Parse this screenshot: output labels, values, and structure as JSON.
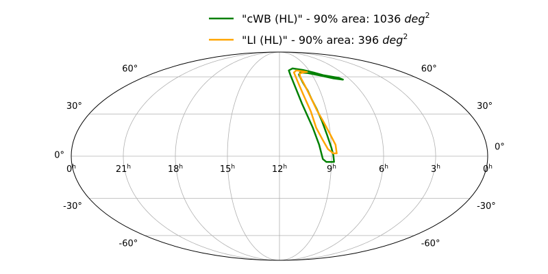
{
  "chart_data": {
    "type": "line",
    "projection": "mollweide",
    "title": "",
    "grid": true,
    "legend_placement": "top",
    "x_tick_labels": [
      {
        "ra_hours": 24,
        "base": "0",
        "sup": "h"
      },
      {
        "ra_hours": 21,
        "base": "21",
        "sup": "h"
      },
      {
        "ra_hours": 18,
        "base": "18",
        "sup": "h"
      },
      {
        "ra_hours": 15,
        "base": "15",
        "sup": "h"
      },
      {
        "ra_hours": 12,
        "base": "12",
        "sup": "h"
      },
      {
        "ra_hours": 9,
        "base": "9",
        "sup": "h"
      },
      {
        "ra_hours": 6,
        "base": "6",
        "sup": "h"
      },
      {
        "ra_hours": 3,
        "base": "3",
        "sup": "h"
      },
      {
        "ra_hours": 0,
        "base": "0",
        "sup": "h"
      }
    ],
    "y_tick_labels": [
      {
        "dec": 60,
        "label": "60°"
      },
      {
        "dec": 30,
        "label": "30°"
      },
      {
        "dec": 0,
        "label": "0°"
      },
      {
        "dec": -30,
        "label": "-30°"
      },
      {
        "dec": -60,
        "label": "-60°"
      }
    ],
    "series": [
      {
        "name": "\"cWB (HL)\" - 90% area: 1036 deg²",
        "legend_prefix": "\"cWB (HL)\" - 90% area: 1036 ",
        "legend_unit": "deg",
        "legend_sup": "2",
        "color": "#008000",
        "contours": [
          {
            "points": [
              [
                9.5,
                -2
              ],
              [
                9.7,
                8
              ],
              [
                10.0,
                20
              ],
              [
                10.5,
                38
              ],
              [
                10.8,
                52
              ],
              [
                11.0,
                62
              ],
              [
                11.05,
                66
              ],
              [
                10.6,
                68
              ],
              [
                9.6,
                66.5
              ],
              [
                8.7,
                64
              ],
              [
                8.0,
                61.5
              ],
              [
                6.8,
                59
              ],
              [
                6.6,
                57.5
              ],
              [
                7.3,
                58.5
              ],
              [
                8.4,
                61.5
              ],
              [
                9.3,
                63.5
              ],
              [
                10.0,
                64
              ],
              [
                10.2,
                62
              ],
              [
                10.1,
                55
              ],
              [
                9.9,
                48
              ],
              [
                9.8,
                42
              ],
              [
                9.6,
                34
              ],
              [
                9.4,
                25
              ],
              [
                9.2,
                15
              ],
              [
                9.0,
                6
              ],
              [
                8.9,
                1
              ],
              [
                8.85,
                -4
              ],
              [
                9.3,
                -4
              ],
              [
                9.5,
                -2
              ]
            ]
          }
        ]
      },
      {
        "name": "\"LI (HL)\" - 90% area: 396 deg²",
        "legend_prefix": "\"LI (HL)\" - 90% area: 396 ",
        "legend_unit": "deg",
        "legend_sup": "2",
        "color": "#FFA500",
        "contours": [
          {
            "points": [
              [
                9.2,
                5
              ],
              [
                9.5,
                12
              ],
              [
                9.8,
                20
              ],
              [
                10.0,
                32
              ],
              [
                10.3,
                45
              ],
              [
                10.5,
                56
              ],
              [
                10.6,
                64
              ],
              [
                10.3,
                66
              ],
              [
                9.6,
                65
              ],
              [
                9.3,
                64.5
              ],
              [
                9.7,
                64
              ],
              [
                10.1,
                63
              ],
              [
                10.15,
                60
              ],
              [
                10.0,
                52
              ],
              [
                9.8,
                42
              ],
              [
                9.6,
                33
              ],
              [
                9.3,
                24
              ],
              [
                9.0,
                15
              ],
              [
                8.75,
                8
              ],
              [
                8.7,
                2
              ],
              [
                8.9,
                2
              ],
              [
                9.2,
                5
              ]
            ]
          }
        ]
      }
    ]
  }
}
